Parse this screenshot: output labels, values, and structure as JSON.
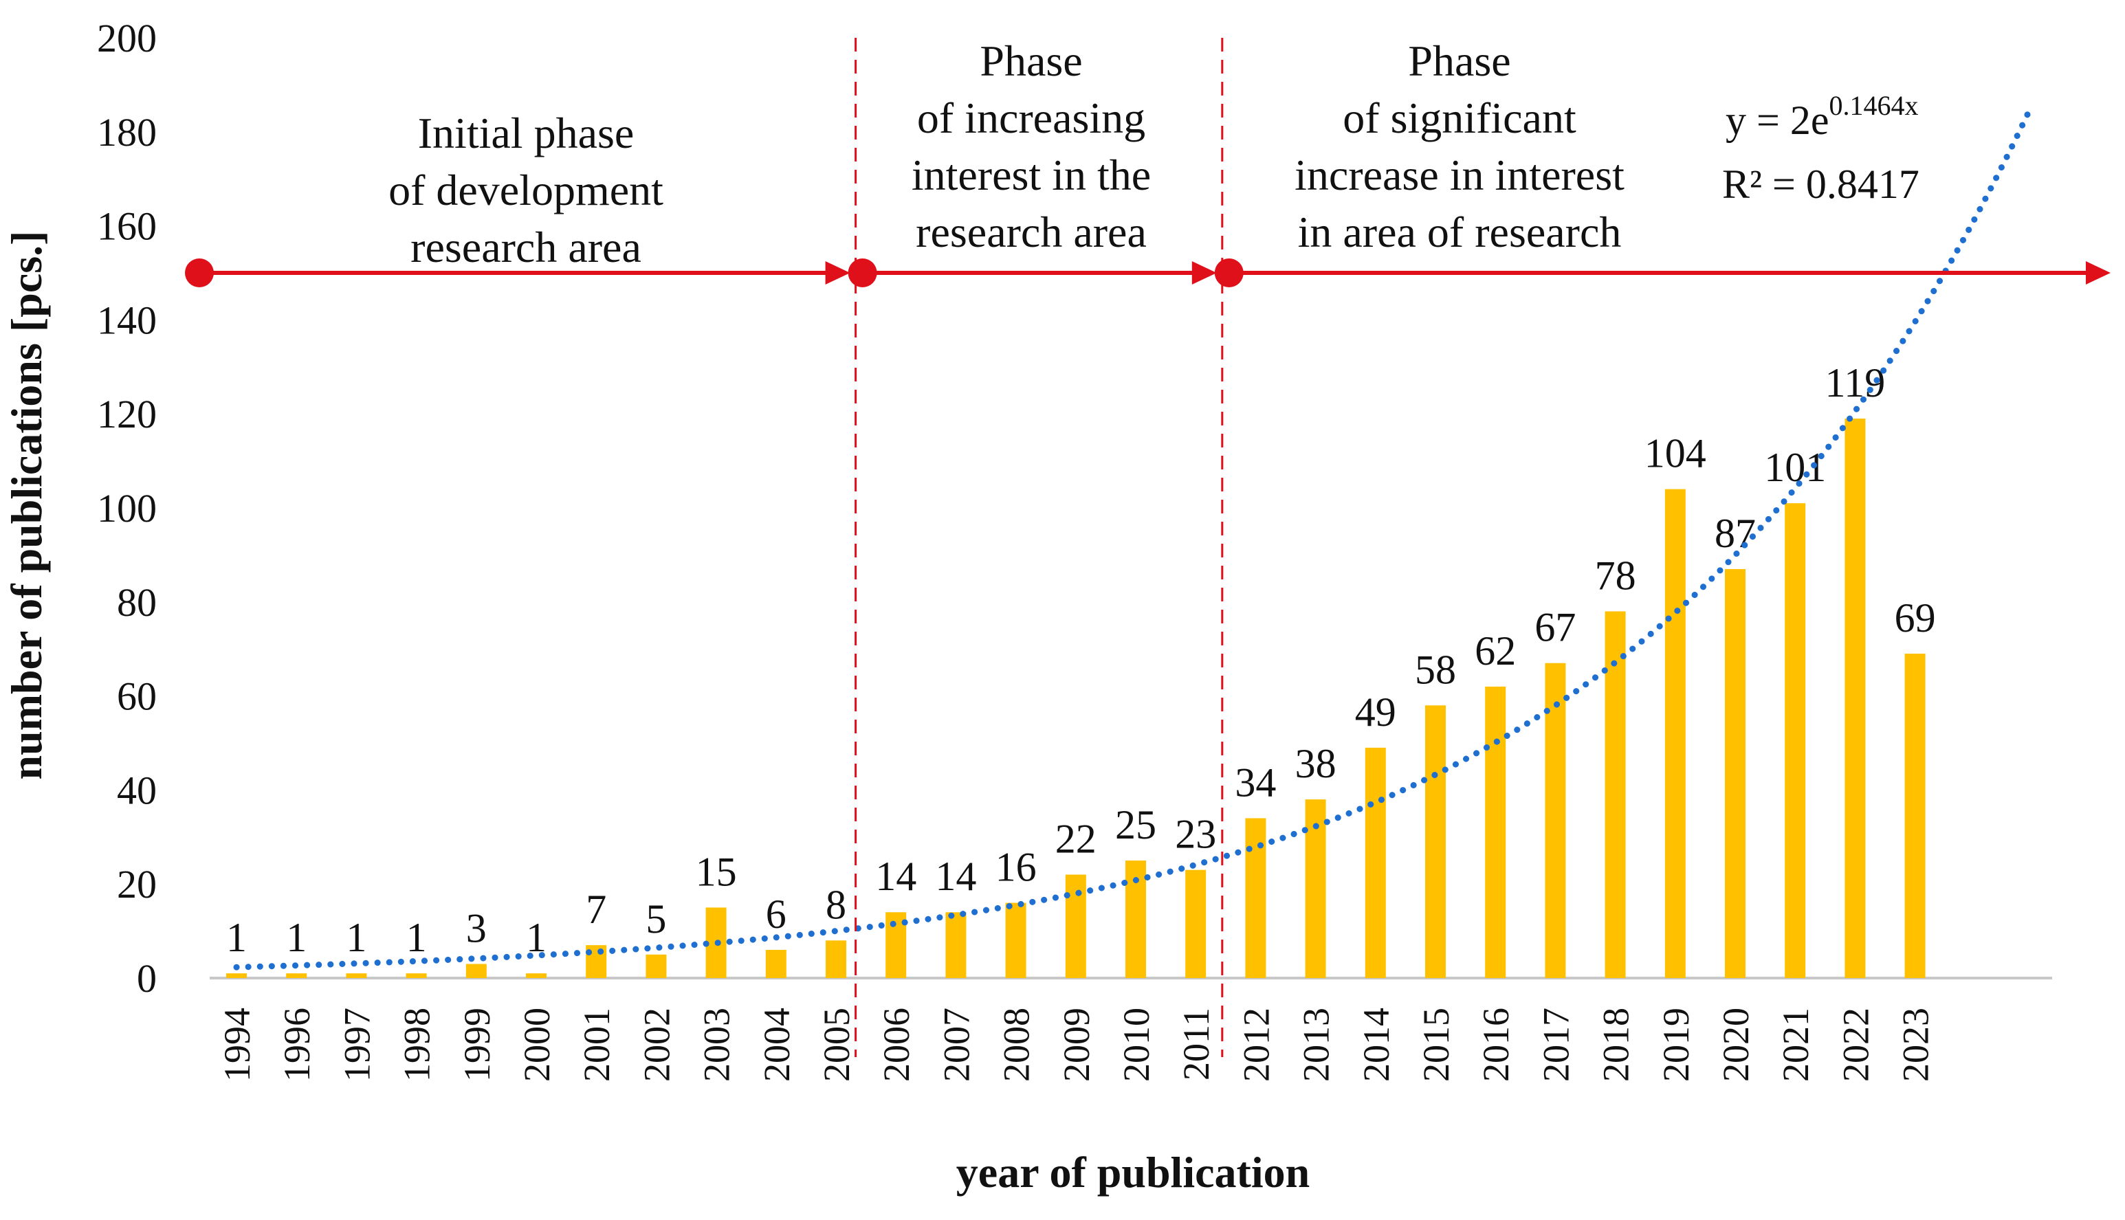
{
  "chart_data": {
    "type": "bar",
    "title": "",
    "xlabel": "year of publication",
    "ylabel": "number of publications [pcs.]",
    "ylim": [
      0,
      200
    ],
    "yticks": [
      0,
      20,
      40,
      60,
      80,
      100,
      120,
      140,
      160,
      180,
      200
    ],
    "categories": [
      "1994",
      "1996",
      "1997",
      "1998",
      "1999",
      "2000",
      "2001",
      "2002",
      "2003",
      "2004",
      "2005",
      "2006",
      "2007",
      "2008",
      "2009",
      "2010",
      "2011",
      "2012",
      "2013",
      "2014",
      "2015",
      "2016",
      "2017",
      "2018",
      "2019",
      "2020",
      "2021",
      "2022",
      "2023"
    ],
    "series": [
      {
        "name": "publications",
        "values": [
          1,
          1,
          1,
          1,
          3,
          1,
          7,
          5,
          15,
          6,
          8,
          14,
          14,
          16,
          22,
          25,
          23,
          34,
          38,
          49,
          58,
          62,
          67,
          78,
          104,
          87,
          101,
          119,
          69
        ],
        "color": "#FFC000"
      }
    ],
    "trendline": {
      "type": "exponential",
      "a": 2,
      "b": 0.1464,
      "equation_prefix": "y = 2e",
      "equation_exponent": "0.1464x",
      "r_squared_label": "R² = 0.8417",
      "color": "#1F6FD1"
    },
    "phases": [
      {
        "lines": [
          "Initial phase",
          "of development",
          "research area"
        ]
      },
      {
        "lines": [
          "Phase",
          "of increasing",
          "interest in the",
          "research area"
        ]
      },
      {
        "lines": [
          "Phase",
          "of significant",
          "increase in interest",
          "in area of research"
        ]
      }
    ],
    "phase_arrow_color": "#E0101A"
  }
}
